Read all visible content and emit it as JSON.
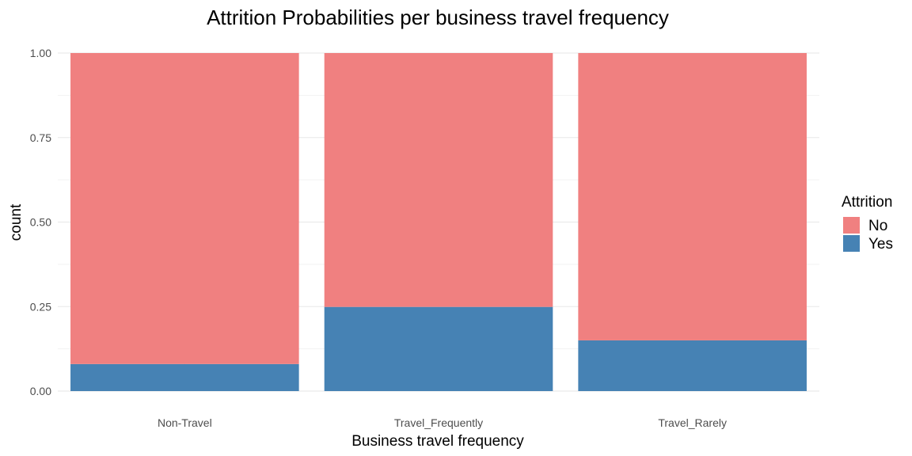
{
  "chart_data": {
    "type": "bar",
    "stacked": true,
    "title": "Attrition Probabilities per business travel frequency",
    "xlabel": "Business travel frequency",
    "ylabel": "count",
    "categories": [
      "Non-Travel",
      "Travel_Frequently",
      "Travel_Rarely"
    ],
    "series": [
      {
        "name": "No",
        "values": [
          0.92,
          0.751,
          0.85
        ],
        "color": "#F08080"
      },
      {
        "name": "Yes",
        "values": [
          0.08,
          0.249,
          0.15
        ],
        "color": "#4682B4"
      }
    ],
    "ylim": [
      0,
      1
    ],
    "yticks": [
      0,
      0.25,
      0.5,
      0.75,
      1
    ],
    "ytick_labels": [
      "0.00",
      "0.25",
      "0.50",
      "0.75",
      "1.00"
    ],
    "grid": true,
    "legend": {
      "title": "Attrition",
      "placement": "right",
      "entries": [
        "No",
        "Yes"
      ]
    }
  }
}
